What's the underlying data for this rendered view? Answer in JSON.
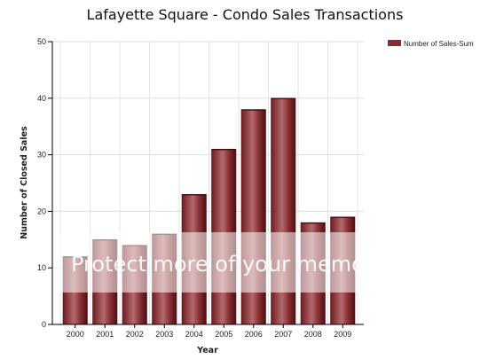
{
  "chart_data": {
    "type": "bar",
    "title": "Lafayette Square - Condo Sales Transactions",
    "xlabel": "Year",
    "ylabel": "Number of Closed Sales",
    "categories": [
      "2000",
      "2001",
      "2002",
      "2003",
      "2004",
      "2005",
      "2006",
      "2007",
      "2008",
      "2009"
    ],
    "series": [
      {
        "name": "Number of Sales-Sum",
        "values": [
          12,
          15,
          14,
          16,
          23,
          31,
          38,
          40,
          18,
          19
        ],
        "color": "#8b2b2e"
      }
    ],
    "ylim": [
      0,
      50
    ],
    "yticks": [
      0,
      10,
      20,
      30,
      40,
      50
    ],
    "grid": true,
    "legend_position": "top-right"
  },
  "watermark": {
    "text": "Protect more of your memories"
  }
}
